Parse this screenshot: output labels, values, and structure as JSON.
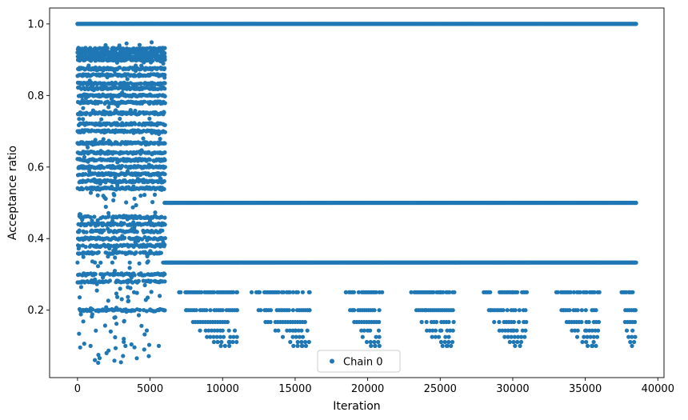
{
  "chart_data": {
    "type": "scatter",
    "title": "",
    "xlabel": "Iteration",
    "ylabel": "Acceptance ratio",
    "xlim": [
      -1925,
      40425
    ],
    "ylim": [
      0.0115,
      1.0445
    ],
    "xticks": [
      0,
      5000,
      10000,
      15000,
      20000,
      25000,
      30000,
      35000,
      40000
    ],
    "xtick_labels": [
      "0",
      "5000",
      "10000",
      "15000",
      "20000",
      "25000",
      "30000",
      "35000",
      "40000"
    ],
    "yticks": [
      0.2,
      0.4,
      0.6,
      0.8,
      1.0
    ],
    "ytick_labels": [
      "0.2",
      "0.4",
      "0.6",
      "0.8",
      "1.0"
    ],
    "grid": false,
    "legend": {
      "position": "lower-center",
      "entries": [
        "Chain 0"
      ]
    },
    "series": [
      {
        "name": "Chain 0",
        "color": "#1f77b4",
        "marker": "circle",
        "summary": {
          "iteration_range": [
            0,
            38500
          ],
          "early_phase_end": 6000,
          "early_levels": [
            0.54,
            0.56,
            0.58,
            0.6,
            0.62,
            0.64,
            0.667,
            0.7,
            0.72,
            0.75,
            0.78,
            0.8,
            0.82,
            0.833,
            0.857,
            0.875,
            0.9,
            0.91,
            0.92,
            0.93,
            0.36,
            0.38,
            0.4,
            0.42,
            0.44,
            0.46,
            0.3,
            0.28,
            0.2
          ],
          "late_levels": [
            1.0,
            0.5,
            0.333,
            0.25,
            0.2,
            0.167,
            0.143,
            0.125,
            0.111,
            0.1
          ]
        },
        "points": [
          [
            0,
            1.0
          ],
          [
            500,
            1.0
          ],
          [
            1000,
            1.0
          ],
          [
            1500,
            1.0
          ],
          [
            2000,
            1.0
          ],
          [
            2500,
            1.0
          ],
          [
            3000,
            1.0
          ],
          [
            3500,
            1.0
          ],
          [
            4000,
            1.0
          ],
          [
            4500,
            1.0
          ],
          [
            5000,
            1.0
          ],
          [
            5500,
            1.0
          ],
          [
            0,
            0.92
          ],
          [
            600,
            0.93
          ],
          [
            1300,
            0.91
          ],
          [
            2100,
            0.92
          ],
          [
            2900,
            0.9
          ],
          [
            3600,
            0.92
          ],
          [
            4400,
            0.91
          ],
          [
            5200,
            0.93
          ],
          [
            5900,
            0.92
          ],
          [
            100,
            0.857
          ],
          [
            900,
            0.875
          ],
          [
            1700,
            0.857
          ],
          [
            2500,
            0.833
          ],
          [
            3300,
            0.857
          ],
          [
            4100,
            0.875
          ],
          [
            4900,
            0.833
          ],
          [
            5700,
            0.857
          ],
          [
            200,
            0.8
          ],
          [
            1000,
            0.82
          ],
          [
            1800,
            0.8
          ],
          [
            2600,
            0.78
          ],
          [
            3400,
            0.8
          ],
          [
            4200,
            0.82
          ],
          [
            5000,
            0.8
          ],
          [
            5800,
            0.78
          ],
          [
            300,
            0.75
          ],
          [
            1100,
            0.72
          ],
          [
            1900,
            0.75
          ],
          [
            2700,
            0.7
          ],
          [
            3500,
            0.72
          ],
          [
            4300,
            0.75
          ],
          [
            5100,
            0.7
          ],
          [
            5900,
            0.72
          ],
          [
            0,
            0.667
          ],
          [
            800,
            0.64
          ],
          [
            1600,
            0.667
          ],
          [
            2400,
            0.62
          ],
          [
            3200,
            0.64
          ],
          [
            4000,
            0.667
          ],
          [
            4800,
            0.62
          ],
          [
            5600,
            0.64
          ],
          [
            100,
            0.6
          ],
          [
            900,
            0.58
          ],
          [
            1700,
            0.6
          ],
          [
            2500,
            0.56
          ],
          [
            3300,
            0.58
          ],
          [
            4100,
            0.6
          ],
          [
            4900,
            0.56
          ],
          [
            5700,
            0.54
          ],
          [
            200,
            0.46
          ],
          [
            1000,
            0.45
          ],
          [
            1800,
            0.44
          ],
          [
            2600,
            0.46
          ],
          [
            3400,
            0.42
          ],
          [
            4200,
            0.44
          ],
          [
            5000,
            0.45
          ],
          [
            5800,
            0.46
          ],
          [
            300,
            0.4
          ],
          [
            1100,
            0.38
          ],
          [
            1900,
            0.4
          ],
          [
            2700,
            0.36
          ],
          [
            3500,
            0.38
          ],
          [
            4300,
            0.4
          ],
          [
            5100,
            0.36
          ],
          [
            5900,
            0.38
          ],
          [
            0,
            0.333
          ],
          [
            1200,
            0.333
          ],
          [
            2400,
            0.333
          ],
          [
            3600,
            0.333
          ],
          [
            4800,
            0.333
          ],
          [
            5900,
            0.333
          ],
          [
            400,
            0.3
          ],
          [
            1500,
            0.28
          ],
          [
            2800,
            0.3
          ],
          [
            4000,
            0.28
          ],
          [
            5300,
            0.3
          ],
          [
            200,
            0.2
          ],
          [
            1400,
            0.2
          ],
          [
            2600,
            0.18
          ],
          [
            3800,
            0.2
          ],
          [
            5000,
            0.2
          ],
          [
            900,
            0.1
          ],
          [
            2000,
            0.08
          ],
          [
            3300,
            0.1
          ],
          [
            4600,
            0.09
          ],
          [
            5600,
            0.1
          ],
          [
            7000,
            1.0
          ],
          [
            12000,
            1.0
          ],
          [
            17000,
            1.0
          ],
          [
            22000,
            1.0
          ],
          [
            27000,
            1.0
          ],
          [
            32000,
            1.0
          ],
          [
            38500,
            1.0
          ],
          [
            6500,
            0.5
          ],
          [
            12000,
            0.5
          ],
          [
            17500,
            0.5
          ],
          [
            23000,
            0.5
          ],
          [
            28500,
            0.5
          ],
          [
            34000,
            0.5
          ],
          [
            38500,
            0.5
          ],
          [
            6500,
            0.333
          ],
          [
            11000,
            0.333
          ],
          [
            16000,
            0.333
          ],
          [
            21000,
            0.333
          ],
          [
            26000,
            0.333
          ],
          [
            31000,
            0.333
          ],
          [
            36000,
            0.333
          ],
          [
            38500,
            0.333
          ],
          [
            7500,
            0.25
          ],
          [
            11000,
            0.25
          ],
          [
            12500,
            0.25
          ],
          [
            16000,
            0.25
          ],
          [
            18500,
            0.25
          ],
          [
            21000,
            0.25
          ],
          [
            25000,
            0.25
          ],
          [
            30000,
            0.25
          ],
          [
            35000,
            0.25
          ],
          [
            38000,
            0.25
          ],
          [
            7500,
            0.2
          ],
          [
            11000,
            0.2
          ],
          [
            13000,
            0.2
          ],
          [
            16000,
            0.2
          ],
          [
            19000,
            0.2
          ],
          [
            20800,
            0.2
          ],
          [
            24000,
            0.2
          ],
          [
            28500,
            0.2
          ],
          [
            33500,
            0.2
          ],
          [
            38400,
            0.2
          ],
          [
            10000,
            0.143
          ],
          [
            15000,
            0.143
          ],
          [
            20000,
            0.143
          ],
          [
            25000,
            0.143
          ],
          [
            30000,
            0.143
          ],
          [
            35000,
            0.143
          ],
          [
            10500,
            0.111
          ],
          [
            15500,
            0.1
          ],
          [
            20500,
            0.1
          ],
          [
            25500,
            0.1
          ],
          [
            30500,
            0.1
          ],
          [
            35500,
            0.1
          ]
        ]
      }
    ]
  }
}
